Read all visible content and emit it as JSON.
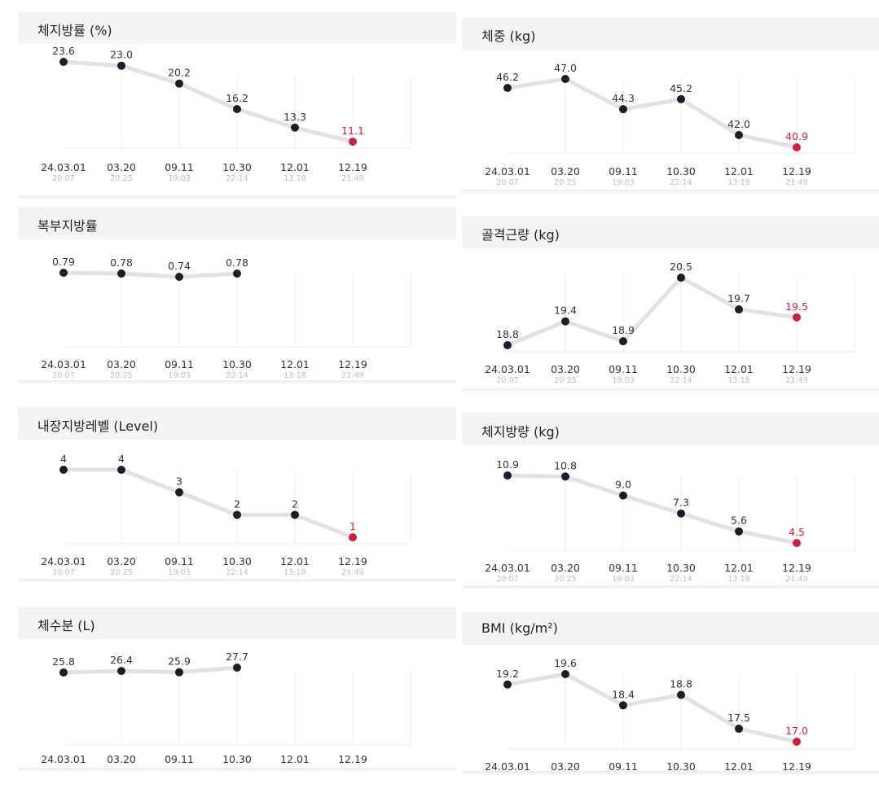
{
  "chart_data": [
    {
      "type": "line",
      "title": "체지방률 (%)",
      "categories": [
        "24.03.01",
        "03.20",
        "09.11",
        "10.30",
        "12.01",
        "12.19"
      ],
      "times": [
        "20:07",
        "20:25",
        "19:03",
        "22:14",
        "13:18",
        "21:49"
      ],
      "values": [
        23.6,
        23.0,
        20.2,
        16.2,
        13.3,
        11.1
      ],
      "labels": [
        "23.6",
        "23.0",
        "20.2",
        "16.2",
        "13.3",
        "11.1"
      ],
      "highlight_color": "#c8233f",
      "grid": true
    },
    {
      "type": "line",
      "title": "복부지방률",
      "categories": [
        "24.03.01",
        "03.20",
        "09.11",
        "10.30",
        "12.01",
        "12.19"
      ],
      "times": [
        "20:07",
        "20:25",
        "19:03",
        "22:14",
        "13:18",
        "21:49"
      ],
      "values": [
        0.79,
        0.78,
        0.74,
        0.78
      ],
      "labels": [
        "0.79",
        "0.78",
        "0.74",
        "0.78"
      ],
      "grid": true
    },
    {
      "type": "line",
      "title": "내장지방레벨 (Level)",
      "categories": [
        "24.03.01",
        "03.20",
        "09.11",
        "10.30",
        "12.01",
        "12.19"
      ],
      "times": [
        "20:07",
        "20:25",
        "19:03",
        "22:14",
        "13:18",
        "21:49"
      ],
      "values": [
        4,
        4,
        3,
        2,
        2,
        1
      ],
      "labels": [
        "4",
        "4",
        "3",
        "2",
        "2",
        "1"
      ],
      "highlight_color": "#c8233f",
      "grid": true
    },
    {
      "type": "line",
      "title": "체수분 (L)",
      "categories": [
        "24.03.01",
        "03.20",
        "09.11",
        "10.30",
        "12.01",
        "12.19"
      ],
      "times": [],
      "values": [
        25.8,
        26.4,
        25.9,
        27.7
      ],
      "labels": [
        "25.8",
        "26.4",
        "25.9",
        "27.7"
      ],
      "grid": true
    },
    {
      "type": "line",
      "title": "체중 (kg)",
      "categories": [
        "24.03.01",
        "03.20",
        "09.11",
        "10.30",
        "12.01",
        "12.19"
      ],
      "times": [
        "20:07",
        "20:25",
        "19:03",
        "22:14",
        "13:18",
        "21:49"
      ],
      "values": [
        46.2,
        47.0,
        44.3,
        45.2,
        42.0,
        40.9
      ],
      "labels": [
        "46.2",
        "47.0",
        "44.3",
        "45.2",
        "42.0",
        "40.9"
      ],
      "highlight_color": "#c8233f",
      "grid": true
    },
    {
      "type": "line",
      "title": "골격근량 (kg)",
      "categories": [
        "24.03.01",
        "03.20",
        "09.11",
        "10.30",
        "12.01",
        "12.19"
      ],
      "times": [
        "20:07",
        "20:25",
        "19:03",
        "22:14",
        "13:18",
        "21:49"
      ],
      "values": [
        18.8,
        19.4,
        18.9,
        20.5,
        19.7,
        19.5
      ],
      "labels": [
        "18.8",
        "19.4",
        "18.9",
        "20.5",
        "19.7",
        "19.5"
      ],
      "highlight_color": "#c8233f",
      "grid": true
    },
    {
      "type": "line",
      "title": "체지방량 (kg)",
      "categories": [
        "24.03.01",
        "03.20",
        "09.11",
        "10.30",
        "12.01",
        "12.19"
      ],
      "times": [
        "20:07",
        "20:25",
        "19:03",
        "22:14",
        "13:18",
        "21:49"
      ],
      "values": [
        10.9,
        10.8,
        9.0,
        7.3,
        5.6,
        4.5
      ],
      "labels": [
        "10.9",
        "10.8",
        "9.0",
        "7.3",
        "5.6",
        "4.5"
      ],
      "highlight_color": "#c8233f",
      "grid": true
    },
    {
      "type": "line",
      "title": "BMI (kg/m²)",
      "categories": [
        "24.03.01",
        "03.20",
        "09.11",
        "10.30",
        "12.01",
        "12.19"
      ],
      "times": [],
      "values": [
        19.2,
        19.6,
        18.4,
        18.8,
        17.5,
        17.0
      ],
      "labels": [
        "19.2",
        "19.6",
        "18.4",
        "18.8",
        "17.5",
        "17.0"
      ],
      "highlight_color": "#c8233f",
      "grid": true
    }
  ]
}
